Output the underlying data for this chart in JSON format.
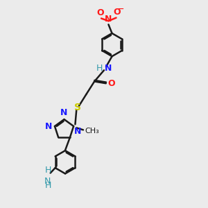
{
  "bg_color": "#ebebeb",
  "bond_color": "#1a1a1a",
  "N_color": "#1919ff",
  "O_color": "#ff1919",
  "S_color": "#cccc00",
  "NH_color": "#3399aa",
  "lw": 1.8,
  "xlim": [
    0,
    10
  ],
  "ylim": [
    0,
    13
  ],
  "figsize": [
    3,
    3
  ],
  "dpi": 100
}
